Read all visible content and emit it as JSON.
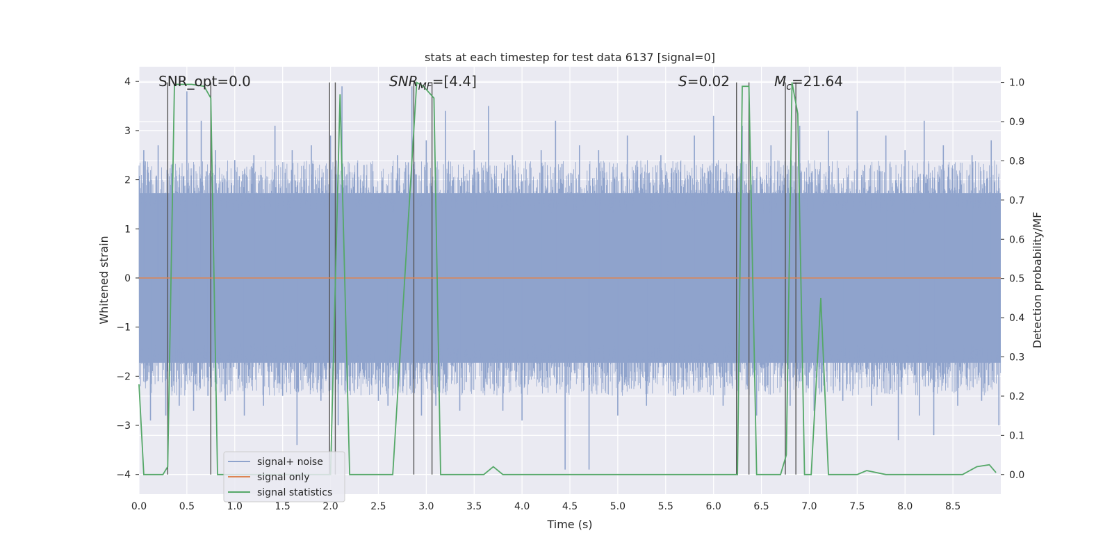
{
  "chart_data": {
    "type": "line",
    "title": "stats at each timestep for test data 6137 [signal=0]",
    "xlabel": "Time (s)",
    "ylabel": "Whitened strain",
    "y2label": "Detection probability/MF",
    "xlim": [
      0,
      9.0
    ],
    "ylim": [
      -4.4,
      4.3
    ],
    "y2lim": [
      -0.05,
      1.04
    ],
    "xticks": [
      "0.0",
      "0.5",
      "1.0",
      "1.5",
      "2.0",
      "2.5",
      "3.0",
      "3.5",
      "4.0",
      "4.5",
      "5.0",
      "5.5",
      "6.0",
      "6.5",
      "7.0",
      "7.5",
      "8.0",
      "8.5"
    ],
    "yticks": [
      "4",
      "3",
      "2",
      "1",
      "0",
      "−1",
      "−2",
      "−3",
      "−4"
    ],
    "y2ticks": [
      "1.0",
      "0.9",
      "0.8",
      "0.7",
      "0.6",
      "0.5",
      "0.4",
      "0.3",
      "0.2",
      "0.1",
      "0.0"
    ],
    "grid": true,
    "legend_position": "lower-left",
    "annotations": {
      "snr_opt": "SNR_opt=0.0",
      "snr_mf_main": "SNR",
      "snr_mf_sub": "MF",
      "snr_mf_rest": "=[4.4]",
      "s_main": "S",
      "s_rest": "=0.02",
      "mc_main": "M",
      "mc_sub": "c",
      "mc_rest": "=21.64"
    },
    "series": [
      {
        "name": "signal+ noise",
        "axis": "left",
        "color": "#8fa3cc",
        "description_envelope_y": [
          -2.3,
          2.3
        ],
        "spikes": [
          [
            0.05,
            2.6
          ],
          [
            0.12,
            -2.9
          ],
          [
            0.2,
            2.7
          ],
          [
            0.28,
            -2.8
          ],
          [
            0.35,
            2.3
          ],
          [
            0.42,
            -2.6
          ],
          [
            0.5,
            3.8
          ],
          [
            0.57,
            -2.7
          ],
          [
            0.65,
            3.2
          ],
          [
            0.72,
            -2.4
          ],
          [
            0.8,
            2.6
          ],
          [
            0.9,
            -2.5
          ],
          [
            1.0,
            2.4
          ],
          [
            1.1,
            -2.8
          ],
          [
            1.2,
            2.5
          ],
          [
            1.3,
            -2.6
          ],
          [
            1.42,
            3.1
          ],
          [
            1.5,
            -2.4
          ],
          [
            1.6,
            2.6
          ],
          [
            1.65,
            -3.4
          ],
          [
            1.8,
            2.7
          ],
          [
            1.9,
            -2.5
          ],
          [
            2.0,
            2.9
          ],
          [
            2.08,
            -3.0
          ],
          [
            2.12,
            3.9
          ],
          [
            2.2,
            -2.3
          ],
          [
            2.35,
            2.3
          ],
          [
            2.5,
            -2.5
          ],
          [
            2.6,
            -2.6
          ],
          [
            2.7,
            2.5
          ],
          [
            2.85,
            3.9
          ],
          [
            2.95,
            -2.8
          ],
          [
            3.0,
            2.8
          ],
          [
            3.1,
            -2.6
          ],
          [
            3.2,
            3.4
          ],
          [
            3.35,
            -2.7
          ],
          [
            3.5,
            2.6
          ],
          [
            3.65,
            3.5
          ],
          [
            3.8,
            -2.7
          ],
          [
            3.9,
            2.5
          ],
          [
            4.0,
            -2.9
          ],
          [
            4.2,
            2.6
          ],
          [
            4.35,
            3.2
          ],
          [
            4.45,
            -3.9
          ],
          [
            4.6,
            2.7
          ],
          [
            4.7,
            -3.9
          ],
          [
            4.8,
            2.6
          ],
          [
            5.0,
            -2.8
          ],
          [
            5.1,
            2.9
          ],
          [
            5.3,
            -2.6
          ],
          [
            5.45,
            2.5
          ],
          [
            5.6,
            -2.4
          ],
          [
            5.8,
            2.9
          ],
          [
            6.0,
            3.3
          ],
          [
            6.1,
            -2.6
          ],
          [
            6.3,
            3.1
          ],
          [
            6.45,
            -2.8
          ],
          [
            6.6,
            2.7
          ],
          [
            6.8,
            -2.6
          ],
          [
            6.9,
            3.1
          ],
          [
            7.05,
            -2.7
          ],
          [
            7.2,
            3.0
          ],
          [
            7.35,
            -2.5
          ],
          [
            7.5,
            3.4
          ],
          [
            7.65,
            -2.6
          ],
          [
            7.8,
            2.9
          ],
          [
            7.93,
            -3.3
          ],
          [
            8.0,
            2.6
          ],
          [
            8.15,
            -2.8
          ],
          [
            8.2,
            3.2
          ],
          [
            8.3,
            -3.2
          ],
          [
            8.4,
            2.7
          ],
          [
            8.55,
            -2.6
          ],
          [
            8.7,
            2.5
          ],
          [
            8.8,
            -2.5
          ],
          [
            8.9,
            2.8
          ],
          [
            8.98,
            -3.0
          ]
        ]
      },
      {
        "name": "signal only",
        "axis": "left",
        "color": "#dd8452",
        "x": [
          0,
          9.0
        ],
        "y": [
          0,
          0
        ]
      },
      {
        "name": "signal statistics",
        "axis": "right",
        "color": "#55a868",
        "x": [
          0,
          0.05,
          0.25,
          0.3,
          0.37,
          0.55,
          0.68,
          0.75,
          0.82,
          1.0,
          2.0,
          2.1,
          2.2,
          2.5,
          2.65,
          2.9,
          2.97,
          3.08,
          3.15,
          3.2,
          3.6,
          3.7,
          3.8,
          4.0,
          4.5,
          5.0,
          6.0,
          6.25,
          6.3,
          6.37,
          6.45,
          6.55,
          6.7,
          6.76,
          6.82,
          6.88,
          6.95,
          7.02,
          7.12,
          7.2,
          7.3,
          7.5,
          7.6,
          7.8,
          8.0,
          8.2,
          8.4,
          8.6,
          8.75,
          8.88,
          8.95
        ],
        "y": [
          0.23,
          0.0,
          0.0,
          0.02,
          0.995,
          0.995,
          0.99,
          0.96,
          0.0,
          0.0,
          0.0,
          0.97,
          0.0,
          0.0,
          0.0,
          1.0,
          0.99,
          0.96,
          0.0,
          0.0,
          0.0,
          0.02,
          0.0,
          0.0,
          0.0,
          0.0,
          0.0,
          0.0,
          0.99,
          0.99,
          0.0,
          0.0,
          0.0,
          0.05,
          1.0,
          0.92,
          0.0,
          0.0,
          0.45,
          0.0,
          0.0,
          0.0,
          0.01,
          0.0,
          0.0,
          0.0,
          0.0,
          0.0,
          0.02,
          0.025,
          0.005
        ]
      }
    ],
    "vertical_lines_x": [
      0.3,
      0.75,
      1.99,
      2.05,
      2.87,
      3.06,
      6.24,
      6.37,
      6.75,
      6.86
    ]
  }
}
